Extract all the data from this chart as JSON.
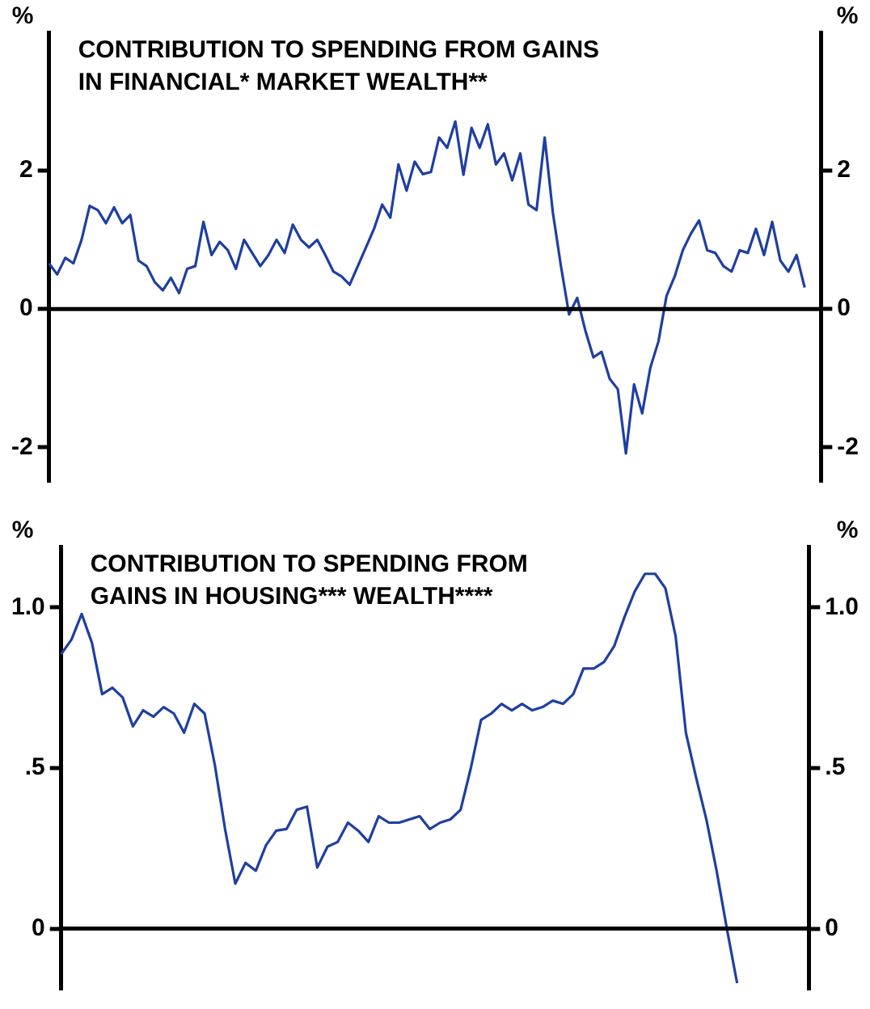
{
  "chart_data": [
    {
      "type": "line",
      "title": "CONTRIBUTION TO SPENDING FROM GAINS\nIN FINANCIAL* MARKET WEALTH**",
      "ylabel": "%",
      "y2label": "%",
      "ylim": [
        -2.5,
        4.0
      ],
      "yticks": [
        -2,
        0,
        2
      ],
      "y2lim": [
        -2.5,
        4.0
      ],
      "y2ticks": [
        -2,
        0,
        2
      ],
      "grid": false,
      "legend": false,
      "marker": "none",
      "line_style": "solid",
      "tick_labels": "y",
      "ref_lines": [
        {
          "axis": "y",
          "value": 0,
          "color": "#000000"
        }
      ],
      "categories": [
        null,
        null,
        null,
        null,
        null,
        null,
        null,
        null,
        null,
        null,
        null,
        null,
        null,
        null,
        null,
        null,
        null,
        null,
        null,
        null,
        null,
        null,
        null,
        null,
        null,
        null,
        null,
        null,
        null,
        null,
        null,
        null,
        null,
        null,
        null,
        null,
        null,
        null,
        null,
        null,
        null,
        null,
        null,
        null,
        null,
        null,
        null,
        null,
        null,
        null,
        null,
        null,
        null,
        null,
        null,
        null,
        null,
        null,
        null,
        null,
        null,
        null,
        null,
        null,
        null,
        null,
        null,
        null,
        null,
        null,
        null,
        null,
        null,
        null,
        null,
        null,
        null,
        null,
        null,
        null,
        null,
        null,
        null,
        null,
        null,
        null,
        null,
        null,
        null,
        null,
        null,
        null,
        null,
        null,
        null,
        null
      ],
      "series": [
        {
          "color": "#1f3fa0",
          "values": [
            0.66,
            0.5,
            0.74,
            0.66,
            1.0,
            1.49,
            1.43,
            1.24,
            1.47,
            1.24,
            1.36,
            0.7,
            0.62,
            0.39,
            0.27,
            0.45,
            0.23,
            0.58,
            0.62,
            1.26,
            0.78,
            0.97,
            0.85,
            0.58,
            1.0,
            0.81,
            0.62,
            0.78,
            1.0,
            0.81,
            1.22,
            1.0,
            0.89,
            1.0,
            0.78,
            0.54,
            0.47,
            0.35,
            0.62,
            0.89,
            1.16,
            1.51,
            1.32,
            2.09,
            1.71,
            2.13,
            1.95,
            1.98,
            2.48,
            2.33,
            2.71,
            1.94,
            2.62,
            2.33,
            2.67,
            2.09,
            2.25,
            1.86,
            2.25,
            1.51,
            1.43,
            2.48,
            1.4,
            0.62,
            -0.08,
            0.16,
            -0.31,
            -0.7,
            -0.62,
            -1.01,
            -1.16,
            -2.09,
            -1.09,
            -1.51,
            -0.85,
            -0.47,
            0.19,
            0.47,
            0.85,
            1.09,
            1.28,
            0.85,
            0.81,
            0.62,
            0.54,
            0.85,
            0.81,
            1.16,
            0.78,
            1.26,
            0.7,
            0.54,
            0.78,
            0.31,
            null,
            null
          ]
        }
      ]
    },
    {
      "type": "line",
      "title": "CONTRIBUTION TO SPENDING FROM\nGAINS IN HOUSING*** WEALTH****",
      "ylabel": "%",
      "y2label": "%",
      "ylim": [
        -0.19,
        1.19
      ],
      "yticks": [
        0,
        {
          "value": 0.5,
          "label": ".5"
        },
        {
          "value": 1,
          "label": "1.0"
        }
      ],
      "y2lim": [
        -0.19,
        1.19
      ],
      "y2ticks": [
        0,
        {
          "value": 0.5,
          "label": ".5"
        },
        {
          "value": 1,
          "label": "1.0"
        }
      ],
      "grid": false,
      "legend": false,
      "marker": "none",
      "line_style": "solid",
      "tick_labels": "y",
      "ref_lines": [
        {
          "axis": "y",
          "value": 0,
          "color": "#000000"
        }
      ],
      "categories": [
        null,
        null,
        null,
        null,
        null,
        null,
        null,
        null,
        null,
        null,
        null,
        null,
        null,
        null,
        null,
        null,
        null,
        null,
        null,
        null,
        null,
        null,
        null,
        null,
        null,
        null,
        null,
        null,
        null,
        null,
        null,
        null,
        null,
        null,
        null,
        null,
        null,
        null,
        null,
        null,
        null,
        null,
        null,
        null,
        null,
        null,
        null,
        null,
        null,
        null,
        null,
        null,
        null,
        null,
        null,
        null,
        null,
        null,
        null,
        null,
        null,
        null,
        null,
        null,
        null,
        null,
        null,
        null,
        null,
        null,
        null,
        null,
        null,
        null
      ],
      "series": [
        {
          "color": "#1f3fa0",
          "values": [
            0.855,
            0.9,
            0.98,
            0.89,
            0.73,
            0.75,
            0.72,
            0.63,
            0.68,
            0.66,
            0.69,
            0.67,
            0.61,
            0.7,
            0.67,
            0.51,
            0.31,
            0.14,
            0.205,
            0.18,
            0.26,
            0.305,
            0.31,
            0.37,
            0.38,
            0.19,
            0.255,
            0.27,
            0.33,
            0.305,
            0.27,
            0.35,
            0.33,
            0.33,
            0.34,
            0.35,
            0.31,
            0.33,
            0.34,
            0.37,
            0.5,
            0.65,
            0.67,
            0.7,
            0.68,
            0.7,
            0.68,
            0.69,
            0.71,
            0.7,
            0.73,
            0.81,
            0.81,
            0.83,
            0.88,
            0.97,
            1.05,
            1.105,
            1.105,
            1.06,
            0.91,
            0.61,
            0.47,
            0.34,
            0.18,
            0.0,
            -0.17,
            null,
            null,
            null,
            null,
            null,
            null,
            null
          ]
        }
      ]
    }
  ]
}
